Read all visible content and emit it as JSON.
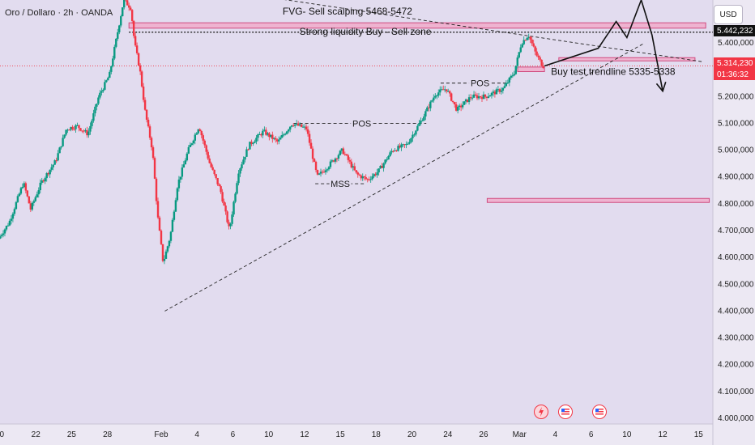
{
  "header": {
    "title": "Oro / Dollaro · 2h · OANDA",
    "currency_button": "USD"
  },
  "price_tags": {
    "level": "5.442,232",
    "last": "5.314,230",
    "countdown": "01:36:32"
  },
  "chart_data": {
    "type": "candlestick",
    "y_axis": {
      "min": 3985000,
      "max": 5560000,
      "ticks": [
        {
          "value": 5400000,
          "label": "5.400,000"
        },
        {
          "value": 5200000,
          "label": "5.200,000"
        },
        {
          "value": 5100000,
          "label": "5.100,000"
        },
        {
          "value": 5000000,
          "label": "5.000,000"
        },
        {
          "value": 4900000,
          "label": "4.900,000"
        },
        {
          "value": 4800000,
          "label": "4.800,000"
        },
        {
          "value": 4700000,
          "label": "4.700,000"
        },
        {
          "value": 4600000,
          "label": "4.600,000"
        },
        {
          "value": 4500000,
          "label": "4.500,000"
        },
        {
          "value": 4400000,
          "label": "4.400,000"
        },
        {
          "value": 4300000,
          "label": "4.300,000"
        },
        {
          "value": 4200000,
          "label": "4.200,000"
        },
        {
          "value": 4100000,
          "label": "4.100,000"
        },
        {
          "value": 4000000,
          "label": "4.000,000"
        }
      ]
    },
    "x_axis": {
      "ticks": [
        {
          "label": "0",
          "x": 0.05
        },
        {
          "label": "22",
          "x": 1
        },
        {
          "label": "25",
          "x": 2
        },
        {
          "label": "28",
          "x": 3
        },
        {
          "label": "Feb",
          "x": 4.5
        },
        {
          "label": "4",
          "x": 5.5
        },
        {
          "label": "6",
          "x": 6.5
        },
        {
          "label": "10",
          "x": 7.5
        },
        {
          "label": "12",
          "x": 8.5
        },
        {
          "label": "15",
          "x": 9.5
        },
        {
          "label": "18",
          "x": 10.5
        },
        {
          "label": "20",
          "x": 11.5
        },
        {
          "label": "24",
          "x": 12.5
        },
        {
          "label": "26",
          "x": 13.5
        },
        {
          "label": "Mar",
          "x": 14.5
        },
        {
          "label": "4",
          "x": 15.5
        },
        {
          "label": "6",
          "x": 16.5
        },
        {
          "label": "10",
          "x": 17.5
        },
        {
          "label": "12",
          "x": 18.5
        },
        {
          "label": "15",
          "x": 19.5
        }
      ]
    },
    "price_path": [
      [
        0.0,
        4670000
      ],
      [
        0.3,
        4730000
      ],
      [
        0.7,
        4880000
      ],
      [
        0.9,
        4780000
      ],
      [
        1.2,
        4880000
      ],
      [
        1.6,
        4960000
      ],
      [
        1.9,
        5080000
      ],
      [
        2.2,
        5090000
      ],
      [
        2.5,
        5060000
      ],
      [
        2.8,
        5200000
      ],
      [
        3.1,
        5280000
      ],
      [
        3.3,
        5420000
      ],
      [
        3.5,
        5560000
      ],
      [
        3.7,
        5530000
      ],
      [
        3.8,
        5400000
      ],
      [
        3.95,
        5300000
      ],
      [
        4.1,
        5140000
      ],
      [
        4.3,
        5000000
      ],
      [
        4.45,
        4750000
      ],
      [
        4.6,
        4580000
      ],
      [
        4.8,
        4680000
      ],
      [
        5.0,
        4870000
      ],
      [
        5.3,
        5000000
      ],
      [
        5.6,
        5090000
      ],
      [
        5.9,
        4950000
      ],
      [
        6.2,
        4850000
      ],
      [
        6.45,
        4700000
      ],
      [
        6.7,
        4920000
      ],
      [
        7.0,
        5020000
      ],
      [
        7.4,
        5070000
      ],
      [
        7.8,
        5030000
      ],
      [
        8.2,
        5100000
      ],
      [
        8.6,
        5080000
      ],
      [
        8.9,
        4900000
      ],
      [
        9.2,
        4940000
      ],
      [
        9.6,
        5000000
      ],
      [
        10.0,
        4910000
      ],
      [
        10.3,
        4890000
      ],
      [
        10.6,
        4920000
      ],
      [
        11.0,
        5000000
      ],
      [
        11.4,
        5020000
      ],
      [
        11.8,
        5110000
      ],
      [
        12.2,
        5210000
      ],
      [
        12.5,
        5230000
      ],
      [
        12.8,
        5150000
      ],
      [
        13.2,
        5200000
      ],
      [
        13.6,
        5200000
      ],
      [
        14.1,
        5230000
      ],
      [
        14.4,
        5290000
      ],
      [
        14.6,
        5400000
      ],
      [
        14.8,
        5430000
      ],
      [
        15.0,
        5360000
      ],
      [
        15.2,
        5314230
      ]
    ],
    "forecast_path": [
      [
        15.2,
        5314230
      ],
      [
        16.7,
        5380000
      ],
      [
        17.2,
        5480000
      ],
      [
        17.5,
        5420000
      ],
      [
        17.9,
        5560000
      ],
      [
        18.2,
        5430000
      ],
      [
        18.5,
        5220000
      ]
    ],
    "zones": [
      {
        "name": "fvg-sell-zone",
        "x1": 3.6,
        "x2": 19.7,
        "y_low": 5455000,
        "y_high": 5475000
      },
      {
        "name": "sell-zone-box",
        "x1": 15.6,
        "x2": 19.4,
        "y_low": 5335000,
        "y_high": 5345000
      },
      {
        "name": "buy-test-box",
        "x1": 14.45,
        "x2": 15.2,
        "y_low": 5293000,
        "y_high": 5310000
      },
      {
        "name": "lower-demand-zone",
        "x1": 13.6,
        "x2": 19.8,
        "y_low": 4805000,
        "y_high": 4820000
      }
    ],
    "lines": [
      {
        "name": "strong-liquidity-level",
        "x1": 3.6,
        "x2": 19.9,
        "y1": 5440000,
        "y2": 5440000,
        "style": "dotted"
      },
      {
        "name": "ascending-trendline",
        "x1": 4.6,
        "x2": 18.0,
        "y1": 4400000,
        "y2": 5400000,
        "style": "dashed"
      },
      {
        "name": "descending-trendline",
        "x1": 6.5,
        "x2": 19.6,
        "y1": 5590000,
        "y2": 5330000,
        "style": "dashed"
      },
      {
        "name": "pos-level-1",
        "x1": 8.2,
        "x2": 11.9,
        "y1": 5100000,
        "y2": 5100000,
        "style": "dashed"
      },
      {
        "name": "pos-level-2",
        "x1": 12.3,
        "x2": 14.2,
        "y1": 5250000,
        "y2": 5250000,
        "style": "dashed"
      },
      {
        "name": "mss-level",
        "x1": 8.8,
        "x2": 10.2,
        "y1": 4875000,
        "y2": 4875000,
        "style": "dashed"
      }
    ],
    "annotations": [
      {
        "text": "FVG- Sell scalping  5468-5472",
        "x": 9.7,
        "y": 5518000,
        "size": "big"
      },
      {
        "text": "Strong liquidity Buy - Sell zone",
        "x": 10.2,
        "y": 5442000,
        "size": "big"
      },
      {
        "text": "POS",
        "x": 10.1,
        "y": 5100000,
        "size": "small"
      },
      {
        "text": "POS",
        "x": 13.4,
        "y": 5250000,
        "size": "small"
      },
      {
        "text": "MSS",
        "x": 9.5,
        "y": 4875000,
        "size": "small"
      },
      {
        "text": "Buy test trendline 5335-5338",
        "x": 15.2,
        "y": 5293000,
        "size": "big",
        "anchor": "start"
      }
    ],
    "last_price": 5314230,
    "colors": {
      "up": "#089981",
      "down": "#f23645",
      "zone_fill": "#f2a6c6",
      "zone_stroke": "#d04a7e",
      "line": "#222222"
    }
  }
}
